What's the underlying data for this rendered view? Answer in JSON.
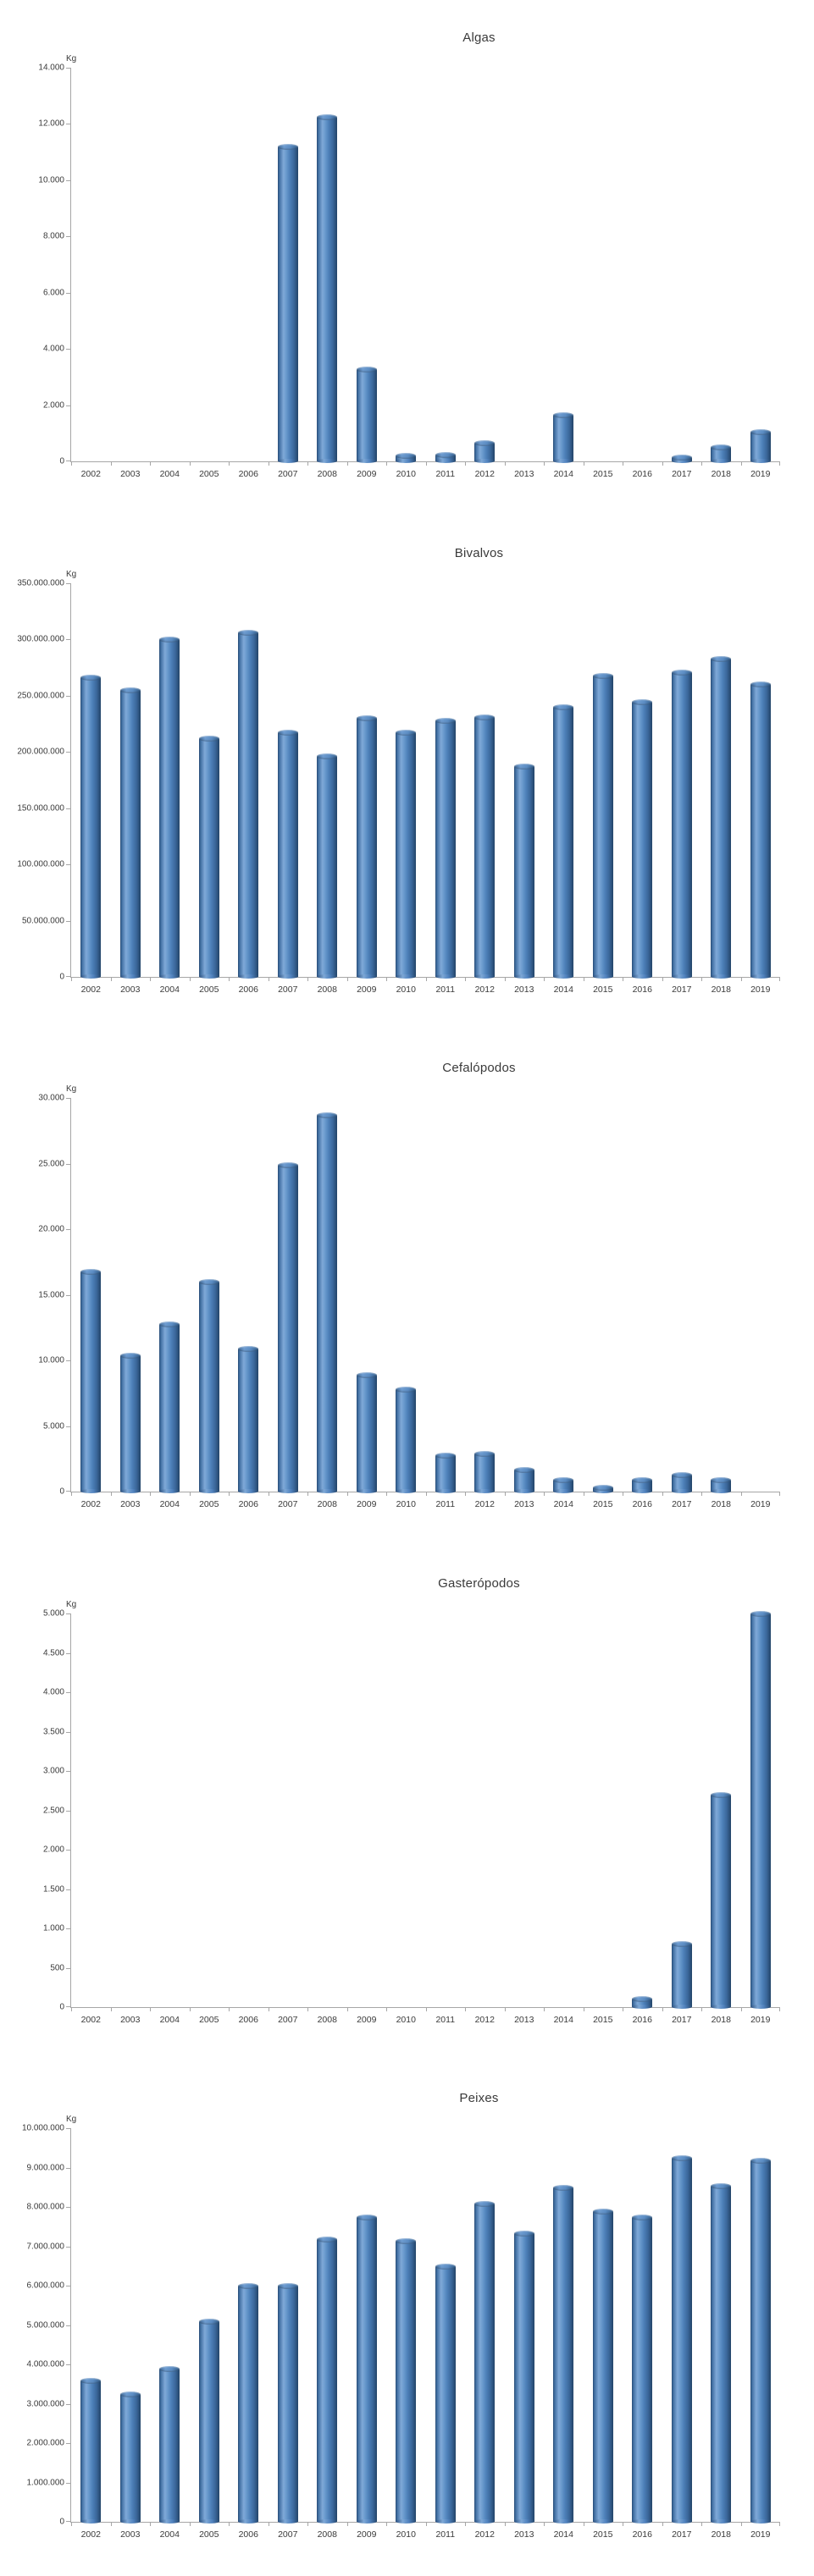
{
  "page": {
    "background": "#ffffff",
    "text_color": "#3a3a3a",
    "axis_color": "#a6a6a6"
  },
  "bar_style": {
    "base_color": "#4f81bd",
    "highlight_color": "#7fa9d8",
    "edge_color": "#274a72",
    "shape": "cylinder"
  },
  "chart_data": [
    {
      "type": "bar",
      "title": "Algas",
      "ylabel": "Kg",
      "xlabel": "",
      "legend": false,
      "grid": false,
      "categories": [
        "2002",
        "2003",
        "2004",
        "2005",
        "2006",
        "2007",
        "2008",
        "2009",
        "2010",
        "2011",
        "2012",
        "2013",
        "2014",
        "2015",
        "2016",
        "2017",
        "2018",
        "2019"
      ],
      "values": [
        0,
        0,
        0,
        0,
        0,
        11200,
        12250,
        3270,
        200,
        250,
        650,
        0,
        1650,
        0,
        0,
        150,
        500,
        1050
      ],
      "ylim": [
        0,
        14000
      ],
      "ytick_step": 2000,
      "ytick_labels": [
        "0",
        "2.000",
        "4.000",
        "6.000",
        "8.000",
        "10.000",
        "12.000",
        "14.000"
      ]
    },
    {
      "type": "bar",
      "title": "Bivalvos",
      "ylabel": "Kg",
      "xlabel": "",
      "legend": false,
      "grid": false,
      "categories": [
        "2002",
        "2003",
        "2004",
        "2005",
        "2006",
        "2007",
        "2008",
        "2009",
        "2010",
        "2011",
        "2012",
        "2013",
        "2014",
        "2015",
        "2016",
        "2017",
        "2018",
        "2019"
      ],
      "values": [
        266000000,
        255000000,
        300000000,
        212000000,
        306000000,
        217000000,
        196000000,
        230000000,
        217000000,
        228000000,
        231000000,
        187000000,
        240000000,
        268000000,
        244000000,
        271000000,
        283000000,
        260000000
      ],
      "ylim": [
        0,
        350000000
      ],
      "ytick_step": 50000000,
      "ytick_labels": [
        "0",
        "50.000.000",
        "100.000.000",
        "150.000.000",
        "200.000.000",
        "250.000.000",
        "300.000.000",
        "350.000.000"
      ]
    },
    {
      "type": "bar",
      "title": "Cefalópodos",
      "ylabel": "Kg",
      "xlabel": "",
      "legend": false,
      "grid": false,
      "categories": [
        "2002",
        "2003",
        "2004",
        "2005",
        "2006",
        "2007",
        "2008",
        "2009",
        "2010",
        "2011",
        "2012",
        "2013",
        "2014",
        "2015",
        "2016",
        "2017",
        "2018",
        "2019"
      ],
      "values": [
        16800,
        10400,
        12800,
        16000,
        10900,
        24900,
        28700,
        8900,
        7800,
        2800,
        2900,
        1700,
        900,
        350,
        900,
        1300,
        900,
        0
      ],
      "ylim": [
        0,
        30000
      ],
      "ytick_step": 5000,
      "ytick_labels": [
        "0",
        "5.000",
        "10.000",
        "15.000",
        "20.000",
        "25.000",
        "30.000"
      ]
    },
    {
      "type": "bar",
      "title": "Gasterópodos",
      "ylabel": "Kg",
      "xlabel": "",
      "legend": false,
      "grid": false,
      "categories": [
        "2002",
        "2003",
        "2004",
        "2005",
        "2006",
        "2007",
        "2008",
        "2009",
        "2010",
        "2011",
        "2012",
        "2013",
        "2014",
        "2015",
        "2016",
        "2017",
        "2018",
        "2019"
      ],
      "values": [
        0,
        0,
        0,
        0,
        0,
        0,
        0,
        0,
        0,
        0,
        0,
        0,
        0,
        0,
        100,
        800,
        2700,
        5000
      ],
      "ylim": [
        0,
        5000
      ],
      "ytick_step": 500,
      "ytick_labels": [
        "0",
        "500",
        "1.000",
        "1.500",
        "2.000",
        "2.500",
        "3.000",
        "3.500",
        "4.000",
        "4.500",
        "5.000"
      ]
    },
    {
      "type": "bar",
      "title": "Peixes",
      "ylabel": "Kg",
      "xlabel": "",
      "legend": false,
      "grid": false,
      "categories": [
        "2002",
        "2003",
        "2004",
        "2005",
        "2006",
        "2007",
        "2008",
        "2009",
        "2010",
        "2011",
        "2012",
        "2013",
        "2014",
        "2015",
        "2016",
        "2017",
        "2018",
        "2019"
      ],
      "values": [
        3600000,
        3250000,
        3900000,
        5100000,
        6000000,
        6000000,
        7200000,
        7750000,
        7150000,
        6500000,
        8100000,
        7350000,
        8500000,
        7900000,
        7750000,
        9250000,
        8550000,
        9200000
      ],
      "ylim": [
        0,
        10000000
      ],
      "ytick_step": 1000000,
      "ytick_labels": [
        "0",
        "1.000.000",
        "2.000.000",
        "3.000.000",
        "4.000.000",
        "5.000.000",
        "6.000.000",
        "7.000.000",
        "8.000.000",
        "9.000.000",
        "10.000.000"
      ]
    }
  ]
}
